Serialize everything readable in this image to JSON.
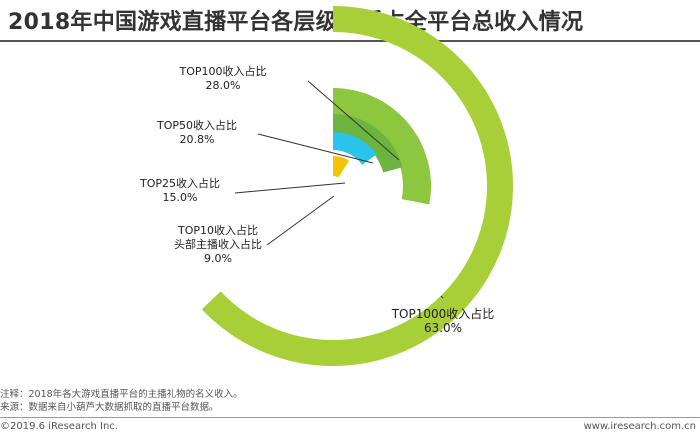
{
  "title": "2018年中国游戏直播平台各层级主播占全平台总收入情况",
  "notes": {
    "line1": "注释：2018年各大游戏直播平台的主播礼物的名义收入。",
    "line2": "来源：数据来自小葫芦大数据抓取的直播平台数据。"
  },
  "footer": {
    "copyright": "©2019.6 iResearch Inc.",
    "site": "www.iresearch.com.cn"
  },
  "chart_data": {
    "type": "radial-bar",
    "max_value": 100,
    "series": [
      {
        "label_lines": [
          "TOP1000收入占比"
        ],
        "value": 63.0,
        "value_text": "63.0%",
        "color": "#A9CF38"
      },
      {
        "label_lines": [
          "TOP100收入占比"
        ],
        "value": 28.0,
        "value_text": "28.0%",
        "color": "#8DC63F"
      },
      {
        "label_lines": [
          "TOP50收入占比"
        ],
        "value": 20.8,
        "value_text": "20.8%",
        "color": "#6DB33F"
      },
      {
        "label_lines": [
          "TOP25收入占比"
        ],
        "value": 15.0,
        "value_text": "15.0%",
        "color": "#29C3EC"
      },
      {
        "label_lines": [
          "TOP10收入占比",
          "头部主播收入占比"
        ],
        "value": 9.0,
        "value_text": "9.0%",
        "color": "#F2C500"
      }
    ]
  }
}
